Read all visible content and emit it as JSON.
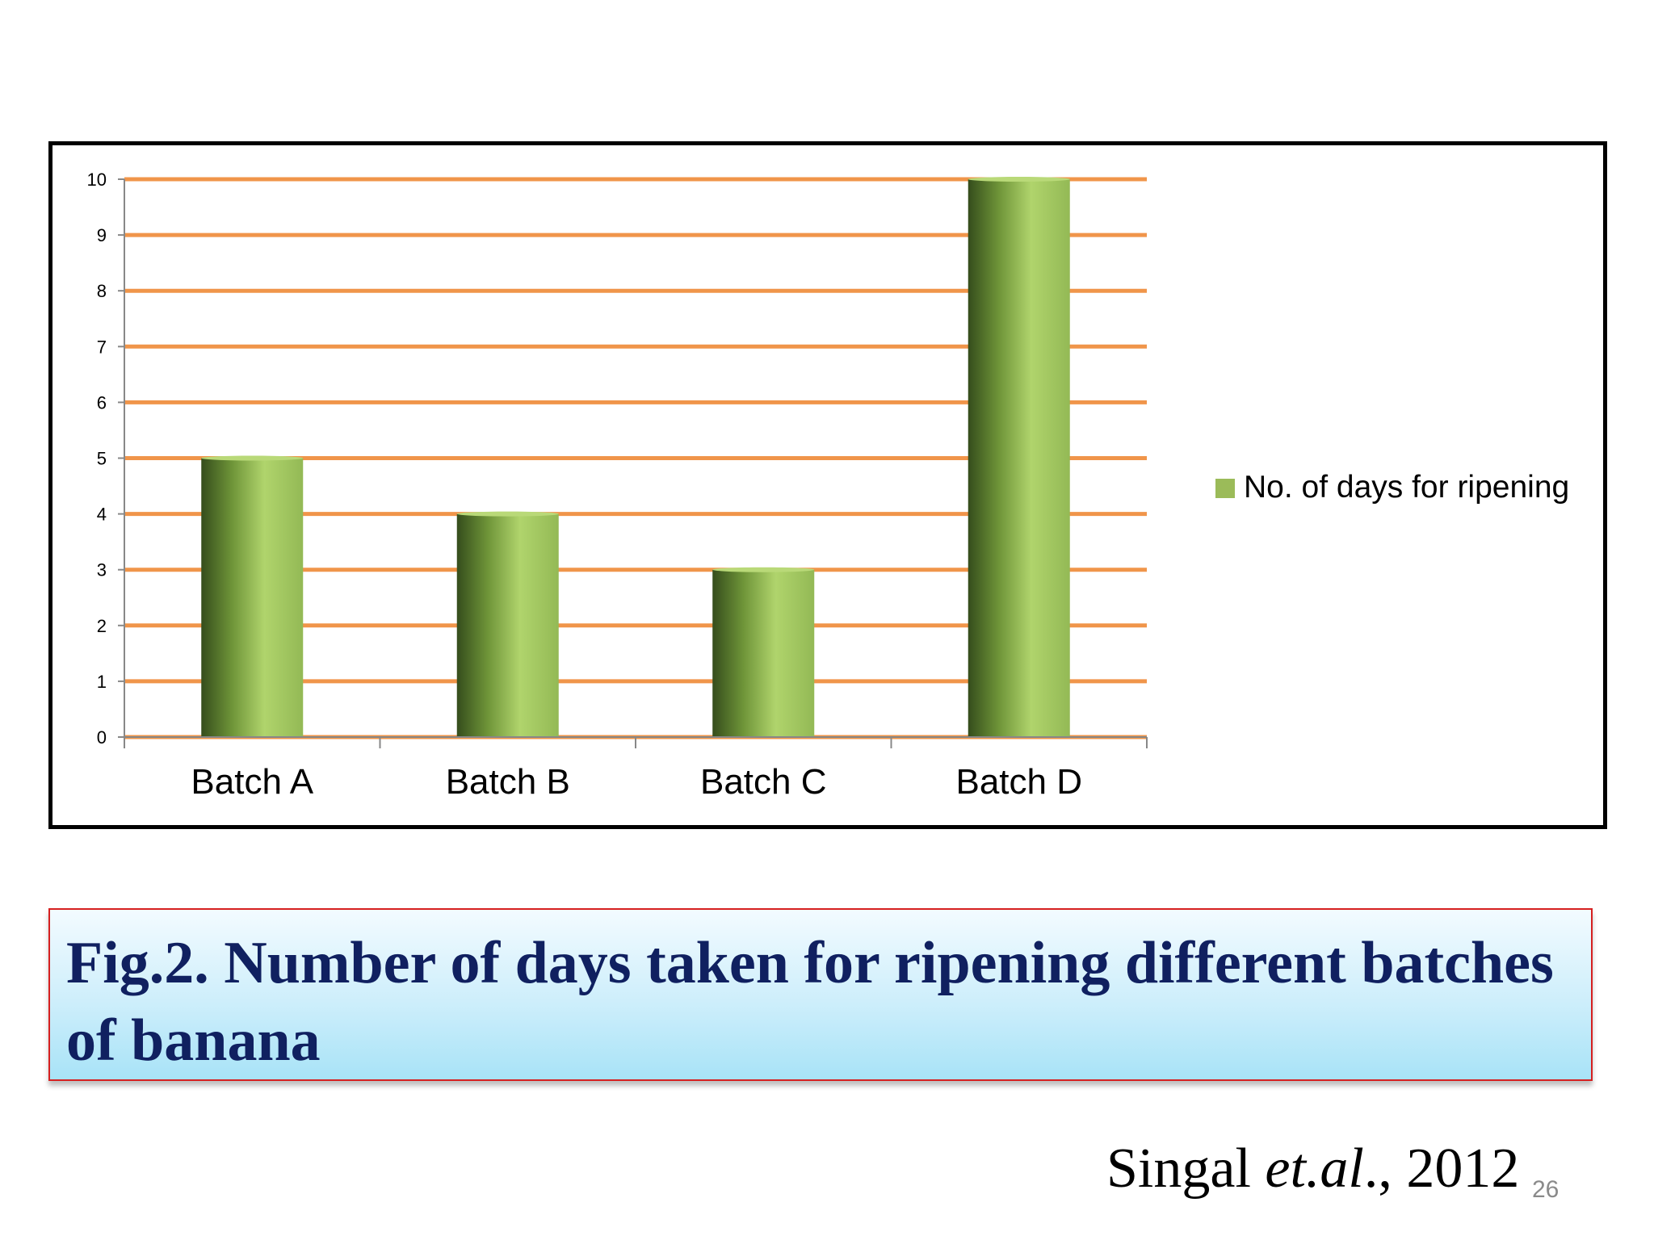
{
  "chart_data": {
    "type": "bar",
    "categories": [
      "Batch A",
      "Batch B",
      "Batch C",
      "Batch D"
    ],
    "series": [
      {
        "name": "No. of days for ripening",
        "values": [
          5,
          4,
          3,
          10
        ]
      }
    ],
    "ylim": [
      0,
      10
    ],
    "yticks": [
      "0",
      "1",
      "2",
      "3",
      "4",
      "5",
      "6",
      "7",
      "8",
      "9",
      "10"
    ],
    "grid": true,
    "legend_position": "right",
    "colors": {
      "bar_light": "#a9cc64",
      "bar_dark": "#3f5a22",
      "grid": "#f0954a"
    }
  },
  "caption": {
    "text": "Fig.2. Number of days taken for ripening different batches of banana"
  },
  "citation": {
    "author": "Singal ",
    "etal": "et.al",
    "year": "., 2012"
  },
  "slide_number": "26"
}
